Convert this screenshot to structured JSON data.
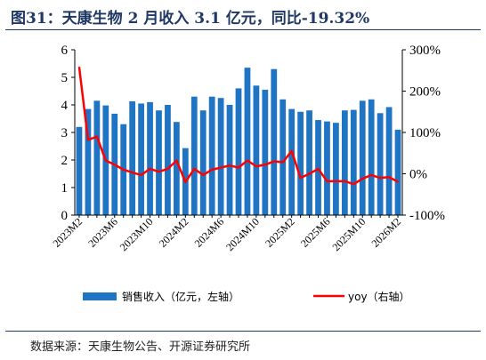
{
  "title": "图31：天康生物 2 月收入 3.1 亿元，同比-19.32%",
  "source": "数据来源：天康生物公告、开源证券研究所",
  "chart_data": {
    "type": "bar+line",
    "title": "图31：天康生物 2 月收入 3.1 亿元，同比-19.32%",
    "categories": [
      "2023M2",
      "2023M3",
      "2023M4",
      "2023M5",
      "2023M6",
      "2023M7",
      "2023M8",
      "2023M9",
      "2023M10",
      "2023M11",
      "2023M12",
      "2024M1",
      "2024M2",
      "2024M3",
      "2024M4",
      "2024M5",
      "2024M6",
      "2024M7",
      "2024M8",
      "2024M9",
      "2024M10",
      "2024M11",
      "2024M12",
      "2025M1",
      "2025M2",
      "2025M3",
      "2025M4",
      "2025M5",
      "2025M6",
      "2025M7",
      "2025M8",
      "2025M9",
      "2025M10",
      "2025M11",
      "2025M12",
      "2026M1",
      "2026M2"
    ],
    "x_tick_labels": [
      "2023M2",
      "2023M6",
      "2023M10",
      "2024M2",
      "2024M6",
      "2024M10",
      "2025M2",
      "2025M6",
      "2025M10",
      "2026M2"
    ],
    "series": [
      {
        "name": "销售收入（亿元，左轴）",
        "type": "bar",
        "axis": "left",
        "color": "#1f74c4",
        "values": [
          3.2,
          3.85,
          4.15,
          3.98,
          3.68,
          3.3,
          4.13,
          4.05,
          4.1,
          3.8,
          4.0,
          3.38,
          2.43,
          4.3,
          3.8,
          4.3,
          4.25,
          4.0,
          4.6,
          5.35,
          4.7,
          4.55,
          5.3,
          4.2,
          3.85,
          3.75,
          3.8,
          3.45,
          3.4,
          3.35,
          3.8,
          3.82,
          4.15,
          4.2,
          3.7,
          3.92,
          3.1
        ]
      },
      {
        "name": "yoy（右轴）",
        "type": "line",
        "axis": "right",
        "color": "#ff0000",
        "values": [
          258,
          82,
          90,
          32,
          22,
          10,
          3,
          -3,
          12,
          5,
          12,
          32,
          -20,
          12,
          -3,
          10,
          15,
          20,
          15,
          32,
          18,
          22,
          30,
          28,
          55,
          -10,
          0,
          12,
          -18,
          -18,
          -18,
          -25,
          -12,
          -3,
          -10,
          -8,
          -19.32
        ]
      }
    ],
    "y_left": {
      "min": 0,
      "max": 6,
      "ticks": [
        "0",
        "1",
        "2",
        "3",
        "4",
        "5",
        "6"
      ]
    },
    "y_right": {
      "min": -100,
      "max": 300,
      "ticks": [
        "-100%",
        "0%",
        "100%",
        "200%",
        "300%"
      ]
    },
    "legend": {
      "position": "bottom",
      "bar_label": "销售收入（亿元，左轴）",
      "line_label": "yoy（右轴）"
    }
  }
}
